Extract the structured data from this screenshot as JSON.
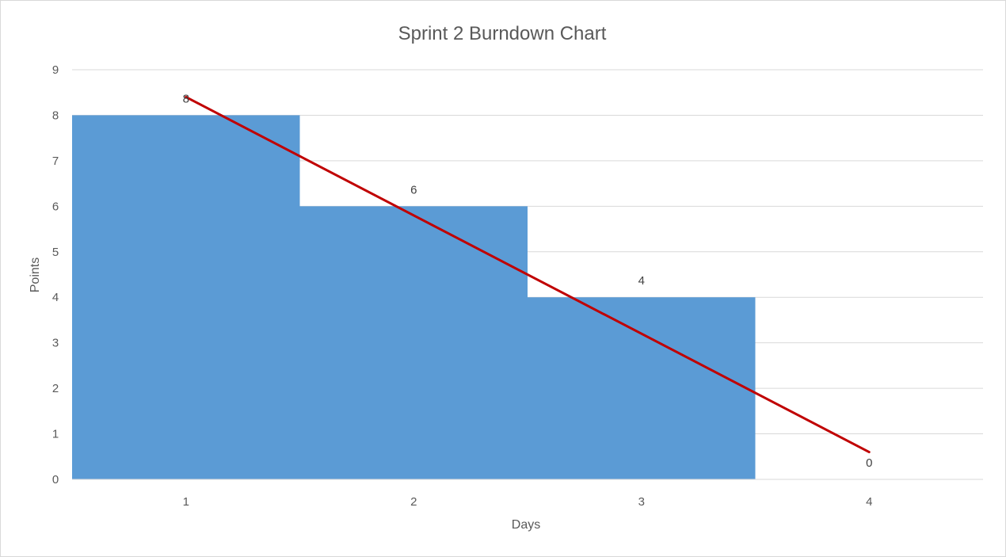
{
  "chart_data": {
    "type": "bar",
    "title": "Sprint 2 Burndown Chart",
    "xlabel": "Days",
    "ylabel": "Points",
    "categories": [
      "1",
      "2",
      "3",
      "4"
    ],
    "values": [
      8,
      6,
      4,
      0
    ],
    "y_ticks": [
      "0",
      "1",
      "2",
      "3",
      "4",
      "5",
      "6",
      "7",
      "8",
      "9"
    ],
    "ylim": [
      0,
      9
    ],
    "grid": true,
    "bar_color": "#5B9BD5",
    "bar_style": "no-gap-step-bars",
    "trendline": {
      "color": "#C00000",
      "start": {
        "x": 1,
        "y": 8.4
      },
      "end": {
        "x": 4,
        "y": 0.6
      }
    },
    "data_labels": [
      "8",
      "6",
      "4",
      "0"
    ]
  }
}
